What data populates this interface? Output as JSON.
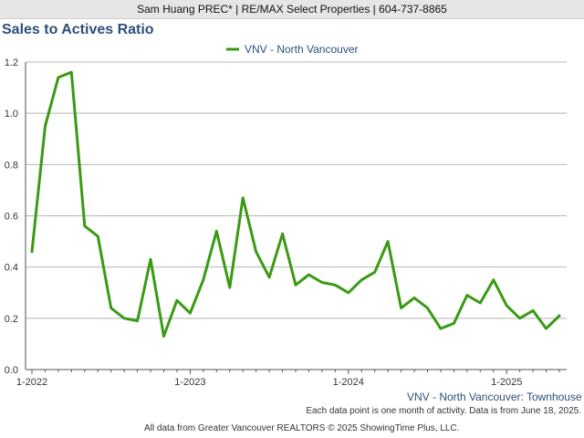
{
  "header": {
    "agent_line": "Sam Huang PREC* | RE/MAX Select Properties | 604-737-8865"
  },
  "colors": {
    "series": "#3a9a14",
    "title": "#2d4f7c",
    "grid": "#b5b5b5",
    "header_bg": "#e6e6e6"
  },
  "chart_data": {
    "type": "line",
    "title": "Sales to Actives Ratio",
    "subtitle": "VNV - North Vancouver: Townhouse",
    "xlabel": "",
    "ylabel": "",
    "ylim": [
      0,
      1.2
    ],
    "yticks": [
      "0.0",
      "0.2",
      "0.4",
      "0.6",
      "0.8",
      "1.0",
      "1.2"
    ],
    "xticks": [
      "1-2022",
      "1-2023",
      "1-2024",
      "1-2025"
    ],
    "legend_position": "top-center",
    "grid": "horizontal",
    "x": [
      "1-2022",
      "2-2022",
      "3-2022",
      "4-2022",
      "5-2022",
      "6-2022",
      "7-2022",
      "8-2022",
      "9-2022",
      "10-2022",
      "11-2022",
      "12-2022",
      "1-2023",
      "2-2023",
      "3-2023",
      "4-2023",
      "5-2023",
      "6-2023",
      "7-2023",
      "8-2023",
      "9-2023",
      "10-2023",
      "11-2023",
      "12-2023",
      "1-2024",
      "2-2024",
      "3-2024",
      "4-2024",
      "5-2024",
      "6-2024",
      "7-2024",
      "8-2024",
      "9-2024",
      "10-2024",
      "11-2024",
      "12-2024",
      "1-2025",
      "2-2025",
      "3-2025",
      "4-2025",
      "5-2025"
    ],
    "series": [
      {
        "name": "VNV - North Vancouver",
        "values": [
          0.46,
          0.95,
          1.14,
          1.16,
          0.56,
          0.52,
          0.24,
          0.2,
          0.19,
          0.43,
          0.13,
          0.27,
          0.22,
          0.35,
          0.54,
          0.32,
          0.67,
          0.46,
          0.36,
          0.53,
          0.33,
          0.37,
          0.34,
          0.33,
          0.3,
          0.35,
          0.38,
          0.5,
          0.24,
          0.28,
          0.24,
          0.16,
          0.18,
          0.29,
          0.26,
          0.35,
          0.25,
          0.2,
          0.23,
          0.16,
          0.21
        ]
      }
    ]
  },
  "footer": {
    "note": "Each data point is one month of activity. Data is from June 18, 2025.",
    "source": "All data from Greater Vancouver REALTORS © 2025 ShowingTime Plus, LLC."
  }
}
